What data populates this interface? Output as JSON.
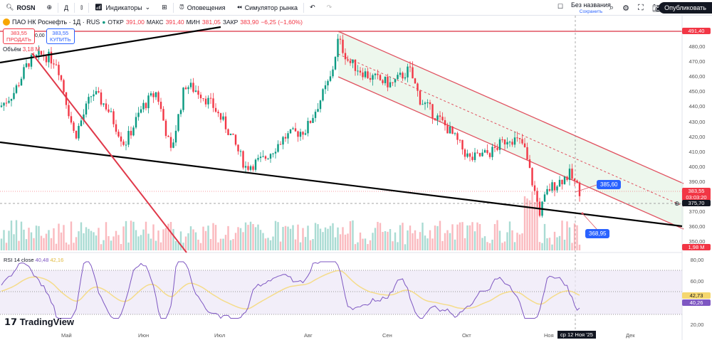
{
  "toolbar": {
    "symbol": "ROSN",
    "interval": "Д",
    "indicators": "Индикаторы",
    "alerts": "Оповещения",
    "replay": "Симулятор рынка",
    "layout_name": "Без названия",
    "save": "Сохранить",
    "publish": "Опубликовать"
  },
  "legend": {
    "title": "ПАО НК Роснефть · 1Д · RUS",
    "open_label": "ОТКР",
    "open": "391,00",
    "high_label": "МАКС",
    "high": "391,40",
    "low_label": "МИН",
    "low": "381,05",
    "close_label": "ЗАКР",
    "close": "383,90",
    "change": "−6,25 (−1,60%)",
    "volume_label": "Объём",
    "volume": "3,18 M"
  },
  "trade": {
    "sell_price": "383,55",
    "sell": "ПРОДАТЬ",
    "spread": "0,00",
    "buy_price": "383,55",
    "buy": "КУПИТЬ"
  },
  "price_axis": [
    "480,00",
    "470,00",
    "460,00",
    "450,00",
    "440,00",
    "430,00",
    "420,00",
    "410,00",
    "400,00",
    "390,00",
    "370,00",
    "360,00",
    "350,00"
  ],
  "tags": {
    "level": "491,40",
    "last": "383,55",
    "countdown": "03:03:20",
    "crosshair": "375,70",
    "volume": "1,98 M",
    "rsi_ma": "42,73",
    "rsi": "40,26"
  },
  "annotations": {
    "upper": "385,60",
    "lower": "368,95"
  },
  "rsi": {
    "label": "RSI 14 close",
    "value": "40,48",
    "ma": "42,16",
    "axis": [
      "80,00",
      "60,00",
      "20,00"
    ]
  },
  "x_axis": [
    "Май",
    "Июн",
    "Июл",
    "Авг",
    "Сен",
    "Окт",
    "Ноя",
    "Дек"
  ],
  "cursor_date": "ср 12 Ноя '25",
  "logo": "TradingView",
  "colors": {
    "up": "#089981",
    "down": "#f23645",
    "rsi": "#7e57c2",
    "rsi_ma": "#f5d76e",
    "channel": "#e8f5e9"
  },
  "chart_data": {
    "type": "candlestick",
    "approx_close_path": [
      [
        0,
        440
      ],
      [
        20,
        450
      ],
      [
        40,
        470
      ],
      [
        60,
        475
      ],
      [
        80,
        470
      ],
      [
        95,
        440
      ],
      [
        105,
        420
      ],
      [
        130,
        450
      ],
      [
        150,
        440
      ],
      [
        175,
        415
      ],
      [
        200,
        440
      ],
      [
        220,
        450
      ],
      [
        240,
        410
      ],
      [
        260,
        455
      ],
      [
        280,
        450
      ],
      [
        300,
        440
      ],
      [
        320,
        425
      ],
      [
        345,
        400
      ],
      [
        370,
        405
      ],
      [
        400,
        420
      ],
      [
        430,
        425
      ],
      [
        450,
        445
      ],
      [
        465,
        460
      ],
      [
        475,
        485
      ],
      [
        490,
        470
      ],
      [
        520,
        460
      ],
      [
        550,
        455
      ],
      [
        575,
        465
      ],
      [
        590,
        445
      ],
      [
        610,
        435
      ],
      [
        630,
        425
      ],
      [
        660,
        405
      ],
      [
        690,
        410
      ],
      [
        715,
        420
      ],
      [
        735,
        415
      ],
      [
        750,
        385
      ],
      [
        758,
        370
      ],
      [
        770,
        385
      ],
      [
        790,
        392
      ],
      [
        800,
        395
      ],
      [
        815,
        383.55
      ]
    ]
  }
}
